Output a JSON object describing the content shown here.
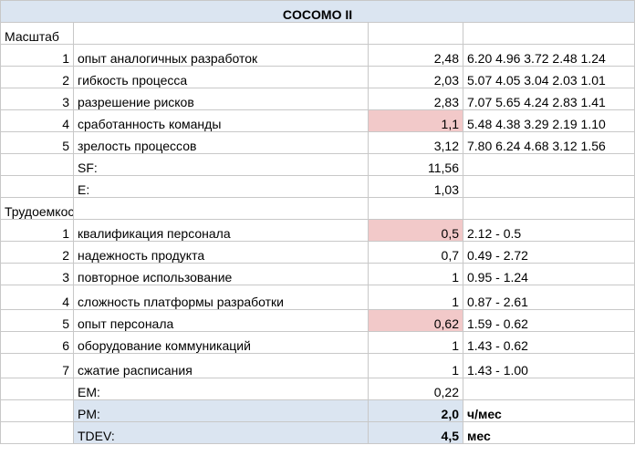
{
  "title": "COCOMO II",
  "scale": {
    "label": "Масштаб",
    "rows": [
      {
        "index": "1",
        "name": "опыт аналогичных разработок",
        "value": "2,48",
        "ref": "6.20 4.96 3.72 2.48 1.24",
        "highlight": false
      },
      {
        "index": "2",
        "name": "гибкость процесса",
        "value": "2,03",
        "ref": "5.07 4.05 3.04 2.03 1.01",
        "highlight": false
      },
      {
        "index": "3",
        "name": "разрешение рисков",
        "value": "2,83",
        "ref": "7.07 5.65 4.24 2.83 1.41",
        "highlight": false
      },
      {
        "index": "4",
        "name": "сработанность команды",
        "value": "1,1",
        "ref": "5.48 4.38 3.29 2.19 1.10",
        "highlight": true
      },
      {
        "index": "5",
        "name": "зрелость процессов",
        "value": "3,12",
        "ref": "7.80 6.24 4.68 3.12 1.56",
        "highlight": false
      }
    ],
    "sf": {
      "label": "SF:",
      "value": "11,56"
    },
    "e": {
      "label": "E:",
      "value": "1,03"
    }
  },
  "effort": {
    "label": "Трудоемкость",
    "rows": [
      {
        "index": "1",
        "name": "квалификация персонала",
        "value": "0,5",
        "ref": "2.12 - 0.5",
        "highlight": true
      },
      {
        "index": "2",
        "name": "надежность продукта",
        "value": "0,7",
        "ref": "0.49 - 2.72",
        "highlight": false
      },
      {
        "index": "3",
        "name": "повторное использование",
        "value": "1",
        "ref": "0.95 - 1.24",
        "highlight": false
      },
      {
        "index": "4",
        "name": "сложность платформы разработки",
        "value": "1",
        "ref": "0.87 - 2.61",
        "highlight": false
      },
      {
        "index": "5",
        "name": "опыт персонала",
        "value": "0,62",
        "ref": "1.59 - 0.62",
        "highlight": true
      },
      {
        "index": "6",
        "name": "оборудование коммуникаций",
        "value": "1",
        "ref": "1.43 - 0.62",
        "highlight": false
      },
      {
        "index": "7",
        "name": "сжатие расписания",
        "value": "1",
        "ref": "1.43 - 1.00",
        "highlight": false
      }
    ],
    "em": {
      "label": "EM:",
      "value": "0,22"
    }
  },
  "results": {
    "pm": {
      "label": "PM:",
      "value": "2,0",
      "unit": "ч/мес"
    },
    "tdev": {
      "label": "TDEV:",
      "value": "4,5",
      "unit": "мес"
    }
  },
  "colors": {
    "header_fill": "#dbe5f1",
    "highlight_fill": "#f2c9c9",
    "grid_line": "#c8c8c8"
  }
}
